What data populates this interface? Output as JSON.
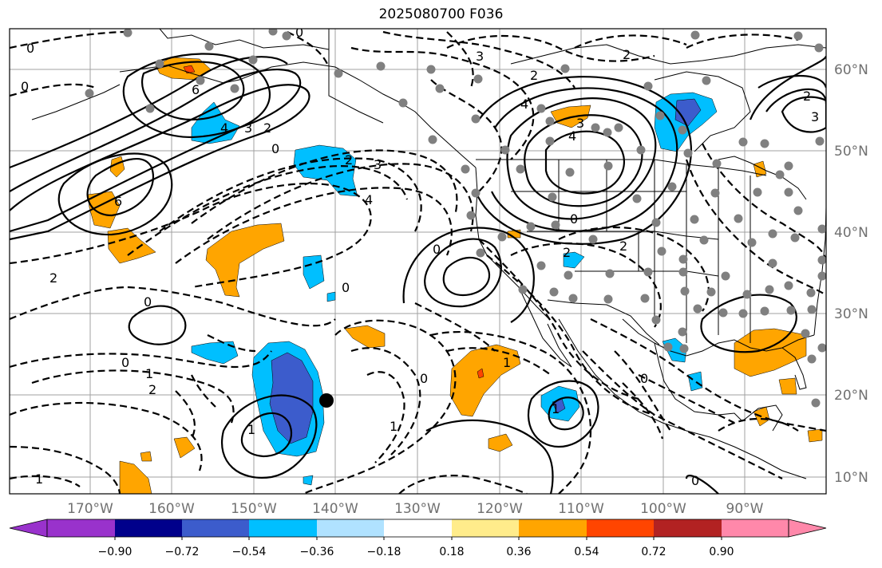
{
  "title": "2025080700 F036",
  "map": {
    "lon_ticks": [
      "170°W",
      "160°W",
      "150°W",
      "140°W",
      "130°W",
      "120°W",
      "110°W",
      "100°W",
      "90°W"
    ],
    "lat_ticks": [
      "60°N",
      "50°N",
      "40°N",
      "30°N",
      "20°N",
      "10°N"
    ],
    "contour_labels": [
      "0",
      "0",
      "2",
      "3",
      "4",
      "6",
      "4",
      "2",
      "3",
      "0",
      "6",
      "0",
      "2",
      "3",
      "4",
      "2",
      "3",
      "2",
      "4",
      "0",
      "2",
      "2",
      "0",
      "0",
      "1",
      "2",
      "0",
      "1",
      "1",
      "1",
      "0",
      "0",
      "0",
      "1",
      "0",
      "1",
      "2",
      "3"
    ],
    "marker": "black-dot"
  },
  "colorbar": {
    "labels": [
      "−0.90",
      "−0.72",
      "−0.54",
      "−0.36",
      "−0.18",
      "0.18",
      "0.36",
      "0.54",
      "0.72",
      "0.90"
    ],
    "colors": [
      "#9932cc",
      "#00008b",
      "#3c5ccc",
      "#00bfff",
      "#b0e2ff",
      "#ffffff",
      "#ffec8b",
      "#ffa500",
      "#ff4500",
      "#b22222",
      "#ff88aa"
    ]
  }
}
